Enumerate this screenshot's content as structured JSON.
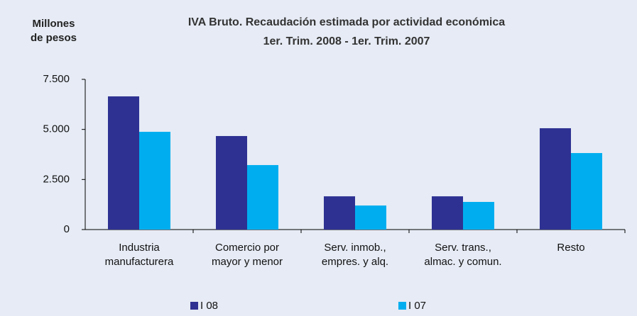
{
  "chart_data": {
    "type": "bar",
    "title": "IVA Bruto. Recaudación estimada por actividad económica",
    "subtitle": "1er. Trim. 2008 - 1er. Trim. 2007",
    "y_label": "Millones\nde pesos",
    "categories": [
      "Industria\nmanufacturera",
      "Comercio por\nmayor y menor",
      "Serv. inmob.,\nempres. y alq.",
      "Serv. trans.,\nalmac. y comun.",
      "Resto"
    ],
    "series": [
      {
        "name": "I 08",
        "color": "#2e3192",
        "values": [
          6650,
          4670,
          1660,
          1660,
          5060
        ]
      },
      {
        "name": "I 07",
        "color": "#00aeef",
        "values": [
          4880,
          3220,
          1200,
          1380,
          3820
        ]
      }
    ],
    "ylim": [
      0,
      7500
    ],
    "yticks": [
      0,
      {
        "value": 2500,
        "label": "2.500"
      },
      {
        "value": 5000,
        "label": "5.000"
      },
      {
        "value": 7500,
        "label": "7.500"
      }
    ],
    "legend": "bottom"
  }
}
